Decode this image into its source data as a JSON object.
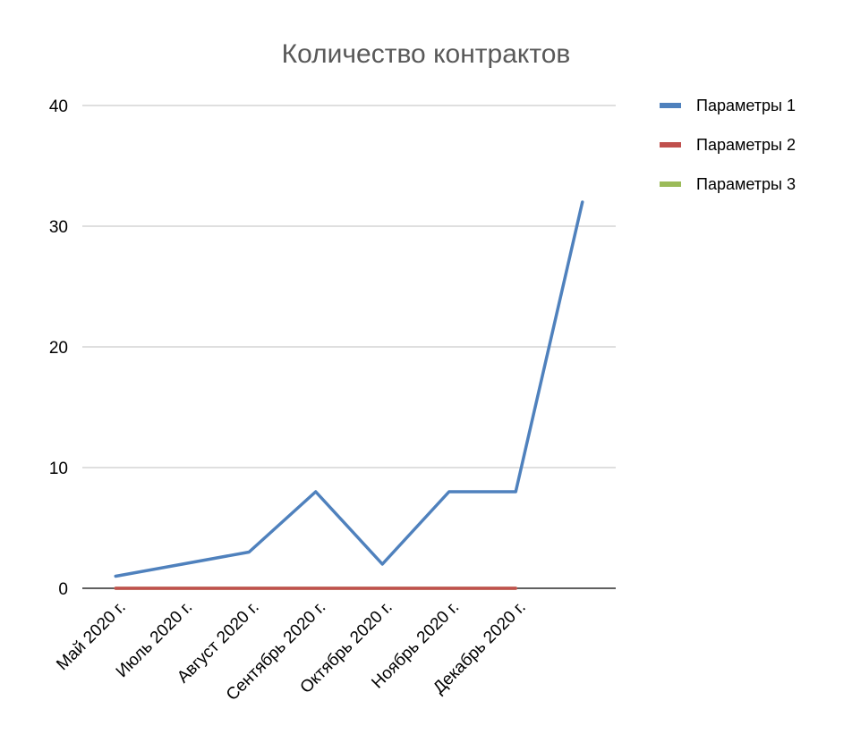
{
  "chart_data": {
    "type": "line",
    "title": "Количество контрактов",
    "xlabel": "",
    "ylabel": "",
    "categories": [
      "Май 2020 г.",
      "Июль 2020 г.",
      "Август 2020 г.",
      "Сентябрь 2020 г.",
      "Октябрь 2020 г.",
      "Ноябрь 2020 г.",
      "Декабрь 2020 г.",
      ""
    ],
    "series": [
      {
        "name": "Параметры 1",
        "color": "#4f81bd",
        "values": [
          1,
          2,
          3,
          8,
          2,
          8,
          8,
          32
        ]
      },
      {
        "name": "Параметры 2",
        "color": "#c0504d",
        "values": [
          0,
          0,
          0,
          0,
          0,
          0,
          0,
          null
        ]
      },
      {
        "name": "Параметры 3",
        "color": "#9bbb59",
        "values": [
          0,
          0,
          0,
          0,
          0,
          0,
          0,
          null
        ]
      }
    ],
    "ylim": [
      0,
      40
    ],
    "yticks": [
      0,
      10,
      20,
      30,
      40
    ],
    "grid": true,
    "legend_position": "right"
  }
}
